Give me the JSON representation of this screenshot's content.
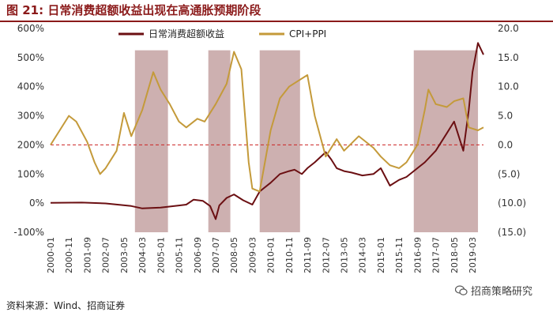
{
  "title": "图 21:  日常消费超额收益出现在高通胀预期阶段",
  "source": "资料来源：Wind、招商证券",
  "watermark": "招商策略研究",
  "colors": {
    "title": "#8b1a1a",
    "series_excess": "#6b0f12",
    "series_cpi_ppi": "#c49a3a",
    "shading": "#c4a2a2",
    "zero_line": "#cc2222",
    "negative_right_ticks": "#cc0000"
  },
  "chart_data": {
    "type": "line",
    "x_ticks": [
      "2000-01",
      "2000-11",
      "2001-09",
      "2002-07",
      "2003-05",
      "2004-03",
      "2005-01",
      "2005-11",
      "2006-09",
      "2007-07",
      "2008-05",
      "2009-03",
      "2010-01",
      "2010-11",
      "2011-09",
      "2012-07",
      "2013-05",
      "2014-03",
      "2015-01",
      "2015-11",
      "2016-09",
      "2017-07",
      "2018-05",
      "2019-03"
    ],
    "y_left": {
      "min": -100,
      "max": 600,
      "ticks": [
        "-100%",
        "0%",
        "100%",
        "200%",
        "300%",
        "400%",
        "500%",
        "600%"
      ]
    },
    "y_right": {
      "min": -15,
      "max": 20,
      "ticks": [
        "(15.0)",
        "(10.0)",
        "(5.0)",
        "0.0",
        "5.0",
        "10.0",
        "15.0",
        "20.0"
      ]
    },
    "legend_position": "top-center",
    "shaded_periods": [
      [
        "2003-11",
        "2005-05"
      ],
      [
        "2007-03",
        "2008-03"
      ],
      [
        "2009-07",
        "2011-05"
      ],
      [
        "2016-07",
        "2019-06"
      ]
    ],
    "series": [
      {
        "name": "日常消费超额收益",
        "axis": "left",
        "points": [
          [
            "2000-01",
            1
          ],
          [
            "2001-06",
            2
          ],
          [
            "2002-07",
            -1
          ],
          [
            "2003-09",
            -10
          ],
          [
            "2004-03",
            -18
          ],
          [
            "2005-01",
            -15
          ],
          [
            "2005-11",
            -8
          ],
          [
            "2006-03",
            -5
          ],
          [
            "2006-07",
            12
          ],
          [
            "2006-12",
            8
          ],
          [
            "2007-04",
            -10
          ],
          [
            "2007-07",
            -55
          ],
          [
            "2007-09",
            -8
          ],
          [
            "2008-01",
            18
          ],
          [
            "2008-05",
            30
          ],
          [
            "2008-10",
            10
          ],
          [
            "2009-03",
            -5
          ],
          [
            "2009-07",
            40
          ],
          [
            "2010-01",
            70
          ],
          [
            "2010-06",
            100
          ],
          [
            "2010-11",
            110
          ],
          [
            "2011-02",
            115
          ],
          [
            "2011-06",
            100
          ],
          [
            "2011-09",
            120
          ],
          [
            "2012-01",
            140
          ],
          [
            "2012-07",
            175
          ],
          [
            "2012-10",
            150
          ],
          [
            "2013-01",
            120
          ],
          [
            "2013-05",
            110
          ],
          [
            "2013-09",
            105
          ],
          [
            "2014-03",
            95
          ],
          [
            "2014-09",
            100
          ],
          [
            "2015-01",
            120
          ],
          [
            "2015-06",
            60
          ],
          [
            "2015-11",
            80
          ],
          [
            "2016-03",
            90
          ],
          [
            "2016-09",
            120
          ],
          [
            "2017-01",
            140
          ],
          [
            "2017-07",
            180
          ],
          [
            "2018-01",
            240
          ],
          [
            "2018-05",
            280
          ],
          [
            "2018-10",
            180
          ],
          [
            "2019-01",
            320
          ],
          [
            "2019-03",
            450
          ],
          [
            "2019-06",
            550
          ],
          [
            "2019-09",
            510
          ]
        ]
      },
      {
        "name": "CPI+PPI",
        "axis": "right",
        "points": [
          [
            "2000-01",
            0.0
          ],
          [
            "2000-06",
            2.5
          ],
          [
            "2000-11",
            5.0
          ],
          [
            "2001-03",
            4.0
          ],
          [
            "2001-09",
            0.5
          ],
          [
            "2002-01",
            -3.0
          ],
          [
            "2002-04",
            -5.0
          ],
          [
            "2002-07",
            -4.0
          ],
          [
            "2003-01",
            -1.0
          ],
          [
            "2003-05",
            5.5
          ],
          [
            "2003-09",
            1.5
          ],
          [
            "2004-03",
            6.0
          ],
          [
            "2004-09",
            12.5
          ],
          [
            "2005-01",
            9.5
          ],
          [
            "2005-06",
            7.0
          ],
          [
            "2005-11",
            4.0
          ],
          [
            "2006-03",
            3.0
          ],
          [
            "2006-09",
            4.5
          ],
          [
            "2007-01",
            4.0
          ],
          [
            "2007-07",
            7.0
          ],
          [
            "2008-01",
            10.5
          ],
          [
            "2008-05",
            16.0
          ],
          [
            "2008-09",
            13.0
          ],
          [
            "2009-01",
            -3.0
          ],
          [
            "2009-03",
            -7.5
          ],
          [
            "2009-07",
            -8.0
          ],
          [
            "2010-01",
            2.5
          ],
          [
            "2010-06",
            8.0
          ],
          [
            "2010-11",
            10.0
          ],
          [
            "2011-04",
            11.0
          ],
          [
            "2011-09",
            12.0
          ],
          [
            "2012-01",
            5.0
          ],
          [
            "2012-07",
            -2.0
          ],
          [
            "2013-01",
            1.0
          ],
          [
            "2013-05",
            -1.0
          ],
          [
            "2014-01",
            1.5
          ],
          [
            "2014-09",
            -0.5
          ],
          [
            "2015-01",
            -2.0
          ],
          [
            "2015-06",
            -3.5
          ],
          [
            "2015-11",
            -4.0
          ],
          [
            "2016-03",
            -3.0
          ],
          [
            "2016-09",
            0.0
          ],
          [
            "2017-01",
            6.0
          ],
          [
            "2017-03",
            9.5
          ],
          [
            "2017-07",
            7.0
          ],
          [
            "2018-01",
            6.5
          ],
          [
            "2018-05",
            7.5
          ],
          [
            "2018-10",
            8.0
          ],
          [
            "2019-01",
            3.0
          ],
          [
            "2019-06",
            2.5
          ],
          [
            "2019-09",
            3.0
          ]
        ]
      }
    ]
  }
}
